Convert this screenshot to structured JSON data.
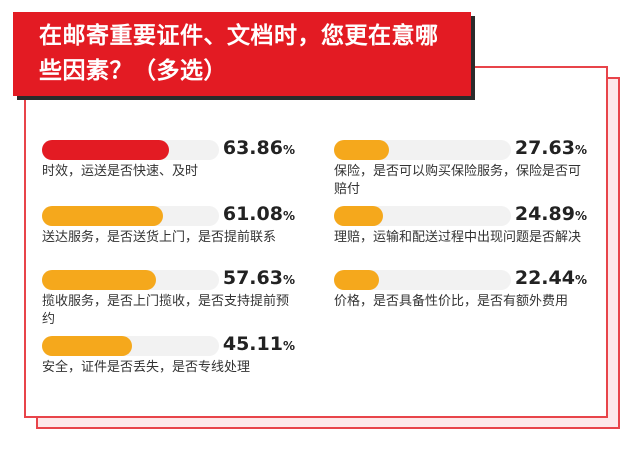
{
  "title": "在邮寄重要证件、文档时，您更在意哪些因素？（多选）",
  "unit": "%",
  "colors": {
    "accent": "#e31b23",
    "bar": "#f5a81c",
    "track": "#f2f2f2",
    "border": "#e8444a"
  },
  "chart_data": {
    "type": "bar",
    "orientation": "horizontal",
    "title": "在邮寄重要证件、文档时，您更在意哪些因素？（多选）",
    "xlim": [
      0,
      100
    ],
    "grid": false,
    "items": [
      {
        "label": "时效，运送是否快速、及时",
        "value": 63.86,
        "highlight": true
      },
      {
        "label": "送达服务，是否送货上门，是否提前联系",
        "value": 61.08,
        "highlight": false
      },
      {
        "label": "揽收服务，是否上门揽收，是否支持提前预约",
        "value": 57.63,
        "highlight": false
      },
      {
        "label": "安全，证件是否丢失，是否专线处理",
        "value": 45.11,
        "highlight": false
      },
      {
        "label": "保险，是否可以购买保险服务，保险是否可赔付",
        "value": 27.63,
        "highlight": false
      },
      {
        "label": "理赔，运输和配送过程中出现问题是否解决",
        "value": 24.89,
        "highlight": false
      },
      {
        "label": "价格，是否具备性价比，是否有额外费用",
        "value": 22.44,
        "highlight": false
      }
    ]
  }
}
